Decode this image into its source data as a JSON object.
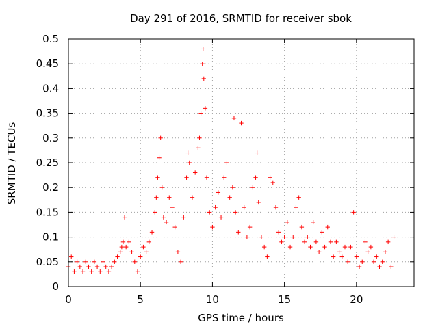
{
  "chart_data": {
    "type": "scatter",
    "title": "Day 291 of 2016, SRMTID for receiver sbok",
    "xlabel": "GPS time / hours",
    "ylabel": "SRMTID / TECUs",
    "xlim": [
      0,
      24
    ],
    "ylim": [
      0,
      0.5
    ],
    "x_ticks": [
      0,
      5,
      10,
      15,
      20
    ],
    "y_ticks": [
      0,
      0.05,
      0.1,
      0.15,
      0.2,
      0.25,
      0.3,
      0.35,
      0.4,
      0.45,
      0.5
    ],
    "x_tick_labels": [
      "0",
      "5",
      "10",
      "15",
      "20"
    ],
    "y_tick_labels": [
      "0",
      "0.05",
      "0.1",
      "0.15",
      "0.2",
      "0.25",
      "0.3",
      "0.35",
      "0.4",
      "0.45",
      "0.5"
    ],
    "grid": true,
    "marker": "+",
    "colors": {
      "points": "#ff0000",
      "grid": "#a0a0a0",
      "axes": "#000000"
    },
    "series": [
      {
        "name": "SRMTID",
        "points": [
          [
            0.0,
            0.04
          ],
          [
            0.2,
            0.06
          ],
          [
            0.4,
            0.03
          ],
          [
            0.6,
            0.05
          ],
          [
            0.8,
            0.04
          ],
          [
            1.0,
            0.03
          ],
          [
            1.2,
            0.05
          ],
          [
            1.4,
            0.04
          ],
          [
            1.6,
            0.03
          ],
          [
            1.8,
            0.05
          ],
          [
            2.0,
            0.04
          ],
          [
            2.2,
            0.03
          ],
          [
            2.4,
            0.05
          ],
          [
            2.6,
            0.04
          ],
          [
            2.8,
            0.03
          ],
          [
            3.0,
            0.04
          ],
          [
            3.2,
            0.05
          ],
          [
            3.4,
            0.06
          ],
          [
            3.6,
            0.07
          ],
          [
            3.7,
            0.08
          ],
          [
            3.8,
            0.09
          ],
          [
            3.9,
            0.14
          ],
          [
            4.0,
            0.08
          ],
          [
            4.2,
            0.09
          ],
          [
            4.4,
            0.07
          ],
          [
            4.6,
            0.05
          ],
          [
            4.8,
            0.03
          ],
          [
            5.0,
            0.06
          ],
          [
            5.2,
            0.08
          ],
          [
            5.4,
            0.07
          ],
          [
            5.6,
            0.09
          ],
          [
            5.8,
            0.11
          ],
          [
            6.0,
            0.15
          ],
          [
            6.1,
            0.18
          ],
          [
            6.2,
            0.22
          ],
          [
            6.3,
            0.26
          ],
          [
            6.4,
            0.3
          ],
          [
            6.5,
            0.2
          ],
          [
            6.6,
            0.14
          ],
          [
            6.8,
            0.13
          ],
          [
            7.0,
            0.18
          ],
          [
            7.2,
            0.16
          ],
          [
            7.4,
            0.12
          ],
          [
            7.6,
            0.07
          ],
          [
            7.8,
            0.05
          ],
          [
            8.0,
            0.14
          ],
          [
            8.2,
            0.22
          ],
          [
            8.3,
            0.27
          ],
          [
            8.4,
            0.25
          ],
          [
            8.6,
            0.18
          ],
          [
            8.8,
            0.23
          ],
          [
            9.0,
            0.28
          ],
          [
            9.1,
            0.3
          ],
          [
            9.2,
            0.35
          ],
          [
            9.3,
            0.45
          ],
          [
            9.35,
            0.48
          ],
          [
            9.4,
            0.42
          ],
          [
            9.5,
            0.36
          ],
          [
            9.6,
            0.22
          ],
          [
            9.8,
            0.15
          ],
          [
            10.0,
            0.12
          ],
          [
            10.2,
            0.16
          ],
          [
            10.4,
            0.19
          ],
          [
            10.6,
            0.14
          ],
          [
            10.8,
            0.22
          ],
          [
            11.0,
            0.25
          ],
          [
            11.2,
            0.18
          ],
          [
            11.4,
            0.2
          ],
          [
            11.5,
            0.34
          ],
          [
            11.6,
            0.15
          ],
          [
            11.8,
            0.11
          ],
          [
            12.0,
            0.33
          ],
          [
            12.2,
            0.16
          ],
          [
            12.4,
            0.1
          ],
          [
            12.6,
            0.12
          ],
          [
            12.8,
            0.2
          ],
          [
            13.0,
            0.22
          ],
          [
            13.1,
            0.27
          ],
          [
            13.2,
            0.17
          ],
          [
            13.4,
            0.1
          ],
          [
            13.6,
            0.08
          ],
          [
            13.8,
            0.06
          ],
          [
            14.0,
            0.22
          ],
          [
            14.2,
            0.21
          ],
          [
            14.4,
            0.16
          ],
          [
            14.6,
            0.11
          ],
          [
            14.8,
            0.09
          ],
          [
            15.0,
            0.1
          ],
          [
            15.2,
            0.13
          ],
          [
            15.4,
            0.08
          ],
          [
            15.6,
            0.1
          ],
          [
            15.8,
            0.16
          ],
          [
            16.0,
            0.18
          ],
          [
            16.2,
            0.12
          ],
          [
            16.4,
            0.09
          ],
          [
            16.6,
            0.1
          ],
          [
            16.8,
            0.08
          ],
          [
            17.0,
            0.13
          ],
          [
            17.2,
            0.09
          ],
          [
            17.4,
            0.07
          ],
          [
            17.6,
            0.11
          ],
          [
            17.8,
            0.08
          ],
          [
            18.0,
            0.12
          ],
          [
            18.2,
            0.09
          ],
          [
            18.4,
            0.06
          ],
          [
            18.6,
            0.09
          ],
          [
            18.8,
            0.07
          ],
          [
            19.0,
            0.06
          ],
          [
            19.2,
            0.08
          ],
          [
            19.4,
            0.05
          ],
          [
            19.6,
            0.08
          ],
          [
            19.8,
            0.15
          ],
          [
            20.0,
            0.06
          ],
          [
            20.2,
            0.04
          ],
          [
            20.4,
            0.05
          ],
          [
            20.6,
            0.09
          ],
          [
            20.8,
            0.07
          ],
          [
            21.0,
            0.08
          ],
          [
            21.2,
            0.05
          ],
          [
            21.4,
            0.06
          ],
          [
            21.6,
            0.04
          ],
          [
            21.8,
            0.05
          ],
          [
            22.0,
            0.07
          ],
          [
            22.2,
            0.09
          ],
          [
            22.4,
            0.04
          ],
          [
            22.6,
            0.1
          ]
        ]
      }
    ]
  }
}
